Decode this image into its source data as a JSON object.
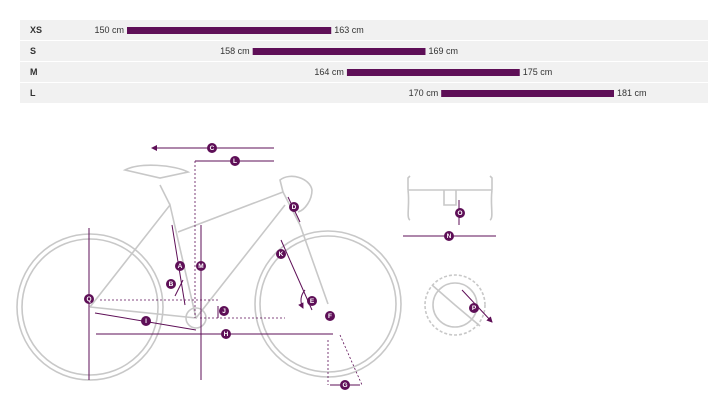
{
  "chart_data": {
    "type": "range",
    "categories": [
      "XS",
      "S",
      "M",
      "L"
    ],
    "series": [
      {
        "values": [
          150,
          158,
          164,
          170
        ],
        "value_labels": [
          "150 cm",
          "158 cm",
          "164 cm",
          "170 cm"
        ]
      },
      {
        "values": [
          163,
          169,
          175,
          181
        ],
        "value_labels": [
          "163 cm",
          "169 cm",
          "175 cm",
          "181 cm"
        ]
      }
    ],
    "color": "#5e0f57"
  },
  "diagram": {
    "labels": [
      "C",
      "L",
      "D",
      "A",
      "M",
      "B",
      "K",
      "Q",
      "J",
      "E",
      "F",
      "I",
      "H",
      "G",
      "O",
      "N",
      "P"
    ]
  }
}
